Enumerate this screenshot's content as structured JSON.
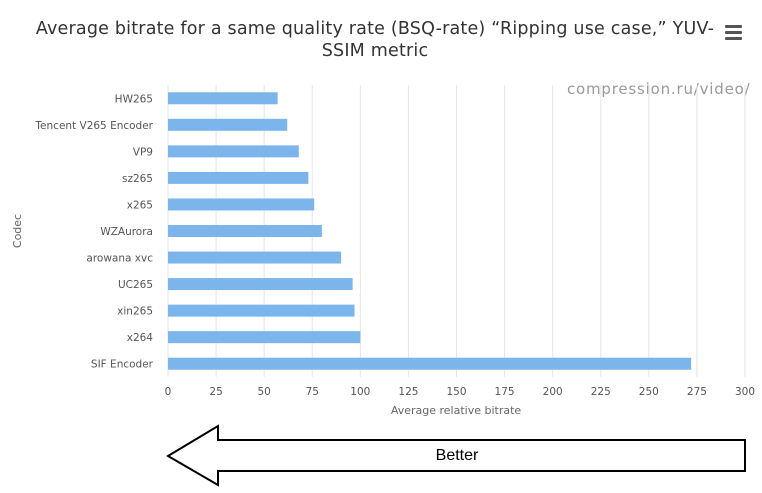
{
  "title": "Average bitrate for a same quality rate (BSQ-rate) “Ripping use case,” YUV-SSIM metric",
  "watermark": "compression.ru/video/",
  "menu_icon": "hamburger-menu-icon",
  "arrow_label": "Better",
  "colors": {
    "bar": "#7cb5ec",
    "grid": "#e6e6e6",
    "text": "#333333"
  },
  "chart_data": {
    "type": "bar",
    "orientation": "horizontal",
    "title": "Average bitrate for a same quality rate (BSQ-rate) “Ripping use case,” YUV-SSIM metric",
    "xlabel": "Average relative bitrate",
    "ylabel": "Codec",
    "categories": [
      "HW265",
      "Tencent V265 Encoder",
      "VP9",
      "sz265",
      "x265",
      "WZAurora",
      "arowana xvc",
      "UC265",
      "xin265",
      "x264",
      "SIF Encoder"
    ],
    "values": [
      57,
      62,
      68,
      73,
      76,
      80,
      90,
      96,
      97,
      100,
      272
    ],
    "xlim": [
      0,
      300
    ],
    "xticks": [
      "0",
      "25",
      "50",
      "75",
      "100",
      "125",
      "150",
      "175",
      "200",
      "225",
      "250",
      "275",
      "300"
    ],
    "grid": true,
    "legend": "none"
  }
}
